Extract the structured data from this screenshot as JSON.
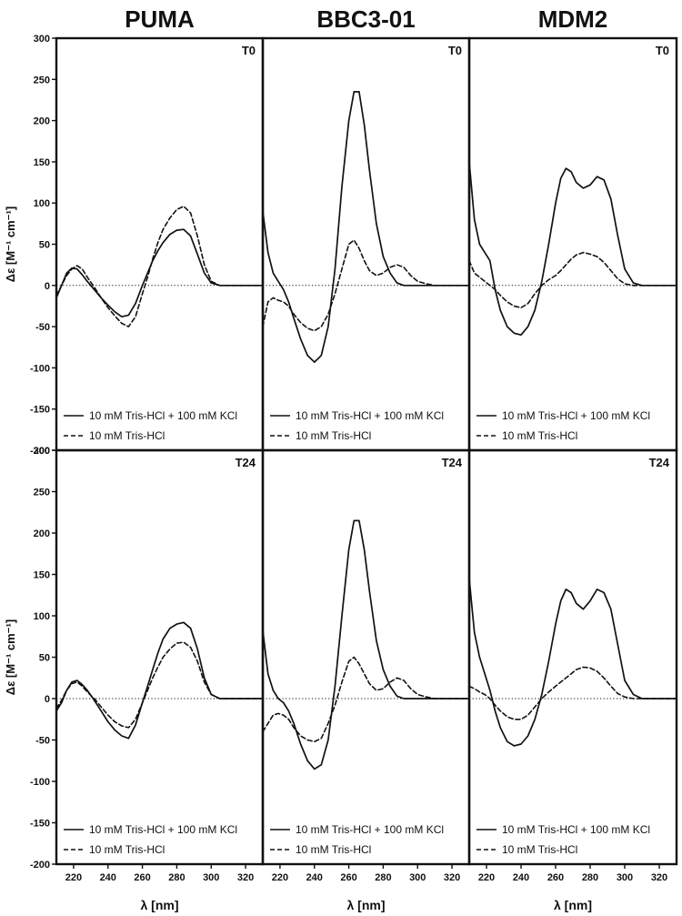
{
  "chart_data": {
    "type": "line",
    "columns": [
      "PUMA",
      "BBC3-01",
      "MDM2"
    ],
    "rows": [
      "T0",
      "T24"
    ],
    "xlabel": "λ [nm]",
    "ylabel": "Δε [M⁻¹ cm⁻¹]",
    "xlim": [
      210,
      330
    ],
    "ylim": [
      -200,
      300
    ],
    "xticks": [
      220,
      240,
      260,
      280,
      300,
      320
    ],
    "yticks": [
      -200,
      -150,
      -100,
      -50,
      0,
      50,
      100,
      150,
      200,
      250,
      300
    ],
    "grid": false,
    "legend_position": "bottom-left",
    "series_names": [
      "10 mM Tris-HCl + 100 mM KCl",
      "10 mM Tris-HCl"
    ],
    "x": [
      210,
      213,
      216,
      219,
      222,
      225,
      228,
      232,
      236,
      240,
      244,
      248,
      252,
      256,
      260,
      263,
      266,
      269,
      272,
      276,
      280,
      284,
      288,
      292,
      296,
      300,
      305,
      310,
      320,
      330
    ],
    "panels": [
      {
        "column": "PUMA",
        "row": "T0",
        "series": [
          {
            "name": "10 mM Tris-HCl + 100 mM KCl",
            "values": [
              -15,
              0,
              15,
              21,
              20,
              13,
              5,
              -5,
              -15,
              -24,
              -32,
              -38,
              -36,
              -22,
              0,
              15,
              30,
              42,
              52,
              62,
              67,
              68,
              60,
              38,
              15,
              3,
              0,
              0,
              0,
              0
            ]
          },
          {
            "name": "10 mM Tris-HCl",
            "values": [
              -12,
              0,
              12,
              20,
              24,
              20,
              10,
              -2,
              -15,
              -27,
              -37,
              -46,
              -50,
              -38,
              -10,
              10,
              32,
              52,
              68,
              82,
              92,
              96,
              88,
              60,
              25,
              5,
              0,
              0,
              0,
              0
            ]
          }
        ]
      },
      {
        "column": "BBC3-01",
        "row": "T0",
        "series": [
          {
            "name": "10 mM Tris-HCl + 100 mM KCl",
            "values": [
              90,
              40,
              15,
              5,
              -5,
              -20,
              -40,
              -65,
              -85,
              -93,
              -85,
              -50,
              20,
              120,
              200,
              235,
              235,
              195,
              140,
              75,
              35,
              15,
              3,
              0,
              0,
              0,
              0,
              0,
              0,
              0
            ]
          },
          {
            "name": "10 mM Tris-HCl",
            "values": [
              -50,
              -20,
              -15,
              -18,
              -20,
              -25,
              -35,
              -45,
              -52,
              -55,
              -50,
              -35,
              -10,
              20,
              50,
              55,
              45,
              30,
              18,
              12,
              15,
              22,
              25,
              22,
              12,
              5,
              2,
              0,
              0,
              0
            ]
          }
        ]
      },
      {
        "column": "MDM2",
        "row": "T0",
        "series": [
          {
            "name": "10 mM Tris-HCl + 100 mM KCl",
            "values": [
              150,
              80,
              50,
              40,
              30,
              -5,
              -30,
              -50,
              -58,
              -60,
              -50,
              -30,
              5,
              50,
              100,
              130,
              142,
              138,
              125,
              118,
              122,
              132,
              128,
              105,
              60,
              20,
              3,
              0,
              0,
              0
            ]
          },
          {
            "name": "10 mM Tris-HCl",
            "values": [
              30,
              15,
              10,
              5,
              0,
              -5,
              -12,
              -20,
              -25,
              -27,
              -22,
              -10,
              0,
              7,
              12,
              18,
              25,
              32,
              37,
              40,
              38,
              35,
              28,
              18,
              8,
              2,
              0,
              0,
              0,
              0
            ]
          }
        ]
      },
      {
        "column": "PUMA",
        "row": "T24",
        "series": [
          {
            "name": "10 mM Tris-HCl + 100 mM KCl",
            "values": [
              -15,
              -5,
              10,
              20,
              22,
              17,
              10,
              -2,
              -15,
              -28,
              -38,
              -45,
              -48,
              -32,
              -5,
              15,
              35,
              55,
              72,
              85,
              90,
              92,
              85,
              60,
              25,
              5,
              0,
              0,
              0,
              0
            ]
          },
          {
            "name": "10 mM Tris-HCl",
            "values": [
              -12,
              -2,
              10,
              18,
              20,
              15,
              8,
              0,
              -10,
              -20,
              -28,
              -33,
              -35,
              -25,
              -5,
              10,
              25,
              38,
              50,
              60,
              67,
              68,
              62,
              45,
              20,
              5,
              0,
              0,
              0,
              0
            ]
          }
        ]
      },
      {
        "column": "BBC3-01",
        "row": "T24",
        "series": [
          {
            "name": "10 mM Tris-HCl + 100 mM KCl",
            "values": [
              82,
              30,
              10,
              0,
              -5,
              -15,
              -30,
              -55,
              -75,
              -85,
              -80,
              -50,
              15,
              100,
              180,
              215,
              215,
              180,
              130,
              70,
              35,
              15,
              3,
              0,
              0,
              0,
              0,
              0,
              0,
              0
            ]
          },
          {
            "name": "10 mM Tris-HCl",
            "values": [
              -40,
              -30,
              -20,
              -18,
              -20,
              -25,
              -35,
              -45,
              -50,
              -52,
              -48,
              -30,
              -8,
              20,
              45,
              50,
              42,
              30,
              18,
              10,
              12,
              20,
              25,
              22,
              12,
              5,
              2,
              0,
              0,
              0
            ]
          }
        ]
      },
      {
        "column": "MDM2",
        "row": "T24",
        "series": [
          {
            "name": "10 mM Tris-HCl + 100 mM KCl",
            "values": [
              145,
              80,
              50,
              30,
              10,
              -15,
              -35,
              -52,
              -57,
              -55,
              -45,
              -25,
              5,
              45,
              90,
              118,
              132,
              128,
              115,
              108,
              118,
              132,
              128,
              108,
              65,
              22,
              5,
              0,
              0,
              0
            ]
          },
          {
            "name": "10 mM Tris-HCl",
            "values": [
              15,
              12,
              8,
              5,
              0,
              -8,
              -15,
              -22,
              -25,
              -25,
              -20,
              -10,
              0,
              8,
              15,
              20,
              25,
              30,
              35,
              38,
              37,
              33,
              25,
              15,
              6,
              2,
              0,
              0,
              0,
              0
            ]
          }
        ]
      }
    ]
  }
}
